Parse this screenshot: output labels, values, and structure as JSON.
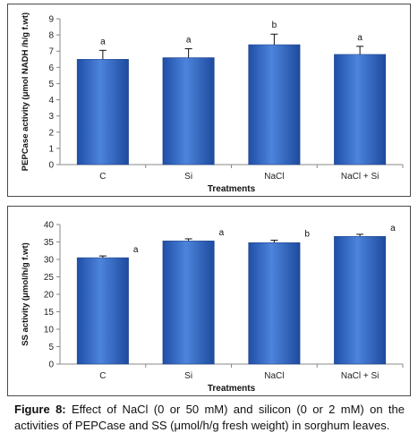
{
  "chart_data": [
    {
      "type": "bar",
      "categories": [
        "C",
        "Si",
        "NaCl",
        "NaCl + Si"
      ],
      "values": [
        6.5,
        6.6,
        7.4,
        6.8
      ],
      "errors": [
        0.55,
        0.55,
        0.65,
        0.5
      ],
      "letters": [
        "a",
        "a",
        "b",
        "a"
      ],
      "ylabel": "PEPCase activity  (μmol NADH /h/g f.wt)",
      "xlabel": "Treatments",
      "ylim": [
        0,
        9
      ],
      "yticks": [
        0,
        1,
        2,
        3,
        4,
        5,
        6,
        7,
        8,
        9
      ],
      "grid": false,
      "bar_color": "#2f63c0"
    },
    {
      "type": "bar",
      "categories": [
        "C",
        "Si",
        "NaCl",
        "NaCl + Si"
      ],
      "values": [
        30.5,
        35.3,
        34.8,
        36.6
      ],
      "errors": [
        0.5,
        0.6,
        0.7,
        0.6
      ],
      "letters": [
        "a",
        "a",
        "b",
        "a"
      ],
      "ylabel": "SS activity (μmol/h/g f.wt)",
      "xlabel": "Treatments",
      "ylim": [
        0,
        40
      ],
      "yticks": [
        0,
        5,
        10,
        15,
        20,
        25,
        30,
        35,
        40
      ],
      "grid": false,
      "bar_color": "#2f63c0"
    }
  ],
  "caption": {
    "label": "Figure 8:",
    "text": " Effect of NaCl (0 or 50 mM) and silicon (0 or 2 mM) on the activities of PEPCase and SS (μmol/h/g fresh weight) in sorghum leaves."
  }
}
